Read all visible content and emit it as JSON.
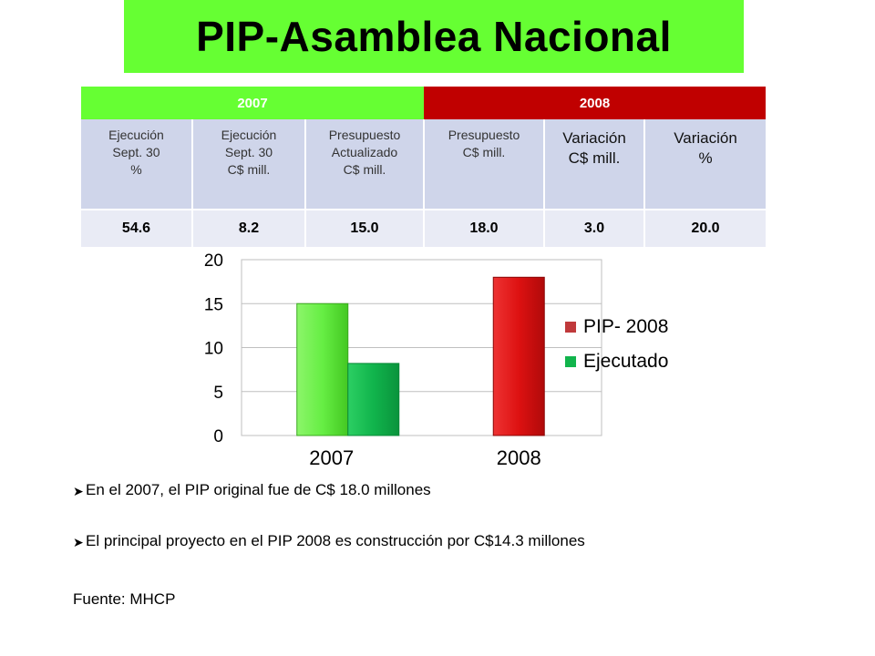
{
  "title": "PIP-Asamblea Nacional",
  "table": {
    "group_2007": "2007",
    "group_2008": "2008",
    "columns": [
      "Ejecución Sept. 30 %",
      "Ejecución Sept. 30 C$ mill.",
      "Presupuesto Actualizado C$ mill.",
      "Presupuesto C$ mill.",
      "Variación C$ mill.",
      "Variación %"
    ],
    "values": [
      "54.6",
      "8.2",
      "15.0",
      "18.0",
      "3.0",
      "20.0"
    ]
  },
  "chart_data": {
    "type": "bar",
    "categories": [
      "2007",
      "2008"
    ],
    "series": [
      {
        "name": "PIP- 2008",
        "values": [
          15.0,
          18.0
        ]
      },
      {
        "name": "Ejecutado",
        "values": [
          8.2,
          null
        ]
      }
    ],
    "ylim": [
      0,
      20
    ],
    "yticks": [
      0,
      5,
      10,
      15,
      20
    ],
    "grid": true,
    "legend_position": "right",
    "colors": {
      "pip_2007": "#66ee44",
      "pip_2008": "#dd1111",
      "ejecutado": "#11b44c",
      "legend_pip": "#c0393b",
      "legend_ejecutado": "#11b44c"
    }
  },
  "bullets": [
    "En el 2007, el PIP original fue de C$ 18.0 millones",
    "El principal proyecto en el PIP 2008 es construcción por C$14.3 millones"
  ],
  "source": "Fuente: MHCP",
  "icons": {
    "bullet": "arrow-right-icon"
  }
}
